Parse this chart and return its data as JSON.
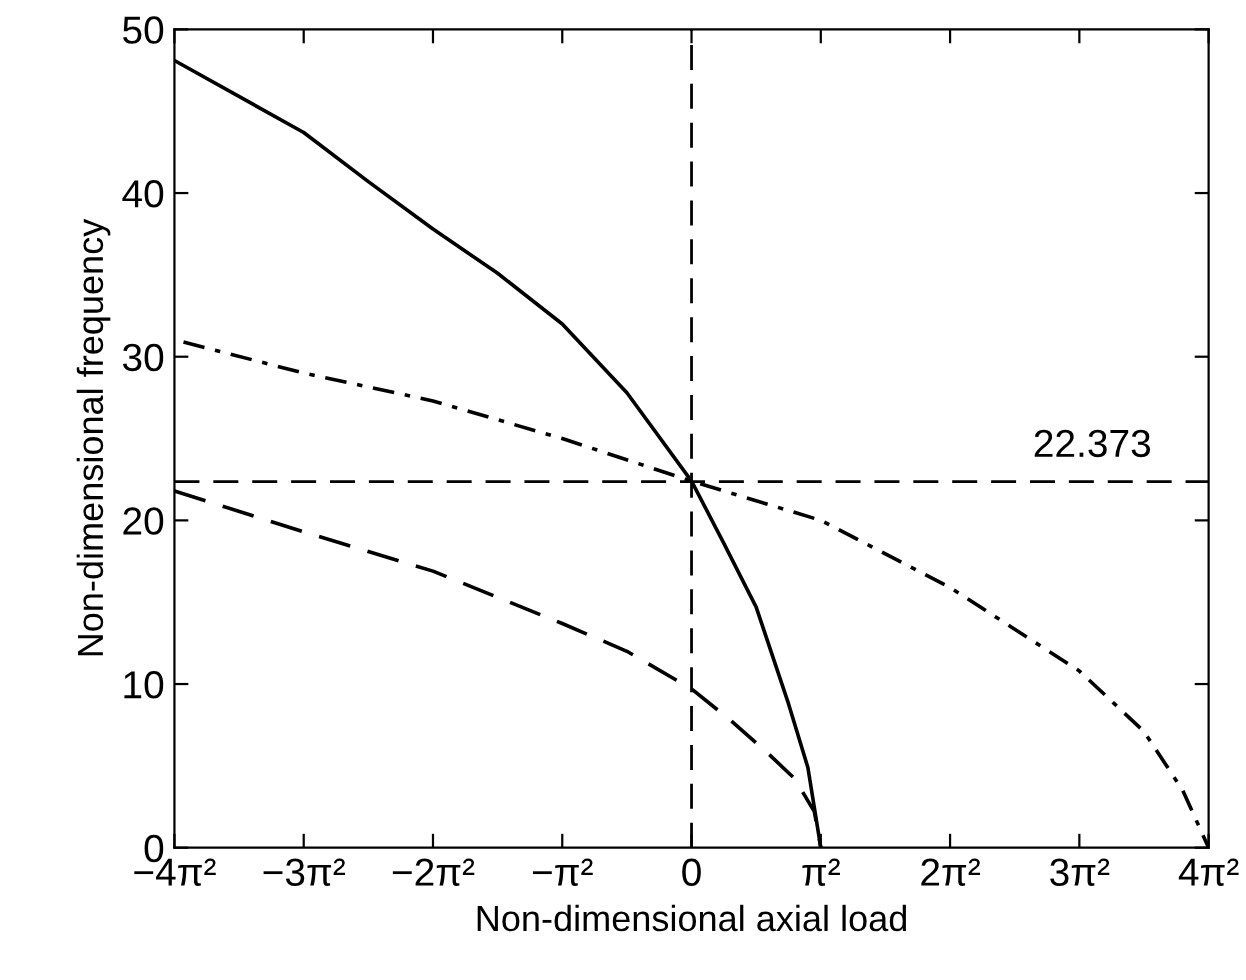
{
  "chart_data": {
    "type": "line",
    "xlabel": "Non-dimensional axial load",
    "ylabel": "Non-dimensional frequency",
    "xlim": [
      -4,
      4
    ],
    "ylim": [
      0,
      50
    ],
    "xticks": [
      {
        "value": -4,
        "label": "−4π²"
      },
      {
        "value": -3,
        "label": "−3π²"
      },
      {
        "value": -2,
        "label": "−2π²"
      },
      {
        "value": -1,
        "label": "−π²"
      },
      0,
      {
        "value": 1,
        "label": "π²"
      },
      {
        "value": 2,
        "label": "2π²"
      },
      {
        "value": 3,
        "label": "3π²"
      },
      {
        "value": 4,
        "label": "4π²"
      }
    ],
    "yticks": [
      0,
      10,
      20,
      30,
      40,
      50
    ],
    "series": [
      {
        "color": "#000000",
        "line_style": "solid",
        "x": [
          -4,
          -3,
          -2.5,
          -2,
          -1.5,
          -1,
          -0.5,
          0,
          0.25,
          0.5,
          0.75,
          0.9,
          1
        ],
        "values": [
          48.1,
          43.7,
          40.7,
          37.8,
          35.1,
          32.0,
          27.8,
          22.4,
          18.6,
          14.7,
          8.8,
          4.9,
          0
        ]
      },
      {
        "color": "#000000",
        "line_style": "dashdot",
        "x": [
          -3.93,
          -3,
          -2,
          -1,
          0,
          1,
          2,
          3,
          3.5,
          3.8,
          4
        ],
        "values": [
          30.9,
          29.0,
          27.3,
          25.0,
          22.4,
          20.0,
          15.9,
          10.8,
          7.1,
          3.5,
          0
        ]
      },
      {
        "color": "#000000",
        "line_style": "dashed",
        "x": [
          -4,
          -3,
          -2,
          -1,
          -0.5,
          0,
          0.3,
          0.6,
          0.8,
          0.95,
          1
        ],
        "values": [
          21.8,
          19.3,
          16.9,
          13.7,
          12.0,
          9.7,
          7.8,
          5.7,
          4.2,
          2.2,
          0
        ]
      }
    ],
    "ref_lines": [
      {
        "axis": "x",
        "value": 0,
        "color": "#000000",
        "line_style": "dashed"
      },
      {
        "axis": "y",
        "value": 22.373,
        "color": "#000000",
        "line_style": "dashed"
      }
    ],
    "annotations": [
      {
        "text": "22.373",
        "x": 3.1,
        "y": 22.373
      }
    ],
    "grid": false,
    "legend": false,
    "marker": "none"
  }
}
